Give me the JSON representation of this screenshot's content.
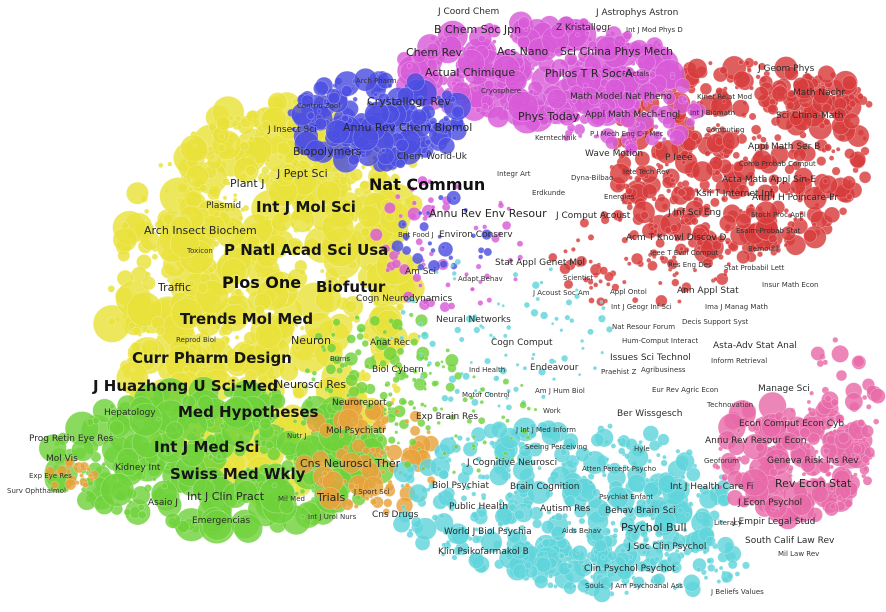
{
  "palette": {
    "yellow": "#e9e23a",
    "green": "#6fd23a",
    "cyan": "#5fd4da",
    "red": "#d83c3c",
    "magenta": "#d85ad8",
    "blue": "#4c4ee0",
    "pink": "#e86aa8",
    "orange": "#e8a23a",
    "background": "#ffffff"
  },
  "labels": [
    {
      "text": "J Coord Chem",
      "tier": 2
    },
    {
      "text": "J Astrophys Astron",
      "tier": 2
    },
    {
      "text": "B Chem Soc Jpn",
      "tier": 3
    },
    {
      "text": "Z Kristallogr",
      "tier": 2
    },
    {
      "text": "Int J Mod Phys D",
      "tier": 1
    },
    {
      "text": "Chem Rev",
      "tier": 3
    },
    {
      "text": "Acs Nano",
      "tier": 3
    },
    {
      "text": "Sci China Phys Mech",
      "tier": 3
    },
    {
      "text": "Actual Chimique",
      "tier": 3
    },
    {
      "text": "Philos T R Soc A",
      "tier": 3
    },
    {
      "text": "Fractals",
      "tier": 1
    },
    {
      "text": "J Geom Phys",
      "tier": 2
    },
    {
      "text": "Arch Pharm",
      "tier": 1
    },
    {
      "text": "Cryosphere",
      "tier": 1
    },
    {
      "text": "Math Nachr",
      "tier": 2
    },
    {
      "text": "Contrib Zool",
      "tier": 1
    },
    {
      "text": "Crystallogr Rev",
      "tier": 3
    },
    {
      "text": "Math Model Nat Pheno",
      "tier": 2
    },
    {
      "text": "Kinet Relat Mod",
      "tier": 1
    },
    {
      "text": "Phys Today",
      "tier": 3
    },
    {
      "text": "Appl Math Mech-Engl",
      "tier": 2
    },
    {
      "text": "Int J Biomath",
      "tier": 1
    },
    {
      "text": "Sci China-Math",
      "tier": 2
    },
    {
      "text": "J Insect Sci",
      "tier": 2
    },
    {
      "text": "Annu Rev Chem Biomol",
      "tier": 3
    },
    {
      "text": "P I Mech Eng C-J Mec",
      "tier": 1
    },
    {
      "text": "Computing",
      "tier": 1
    },
    {
      "text": "Kerntechnik",
      "tier": 1
    },
    {
      "text": "Appl Math Ser B",
      "tier": 2
    },
    {
      "text": "Biopolymers",
      "tier": 3
    },
    {
      "text": "Chem World-Uk",
      "tier": 2
    },
    {
      "text": "Wave Motion",
      "tier": 2
    },
    {
      "text": "P Ieee",
      "tier": 2
    },
    {
      "text": "Comb Probab Comput",
      "tier": 1
    },
    {
      "text": "J Pept Sci",
      "tier": 3
    },
    {
      "text": "Integr Art",
      "tier": 1
    },
    {
      "text": "Dyna-Bilbao",
      "tier": 1
    },
    {
      "text": "Iete Tech Rev",
      "tier": 1
    },
    {
      "text": "Acta Math Appl Sin-E",
      "tier": 2
    },
    {
      "text": "Plant J",
      "tier": 3
    },
    {
      "text": "Nat Commun",
      "tier": 6
    },
    {
      "text": "Erdkunde",
      "tier": 1
    },
    {
      "text": "Energies",
      "tier": 1
    },
    {
      "text": "Ksii T Internet Inf",
      "tier": 2
    },
    {
      "text": "Ann I H Poincare-Pr",
      "tier": 2
    },
    {
      "text": "Plasmid",
      "tier": 2
    },
    {
      "text": "Int J Mol Sci",
      "tier": 5
    },
    {
      "text": "Annu Rev Env Resour",
      "tier": 3
    },
    {
      "text": "J Comput Acoust",
      "tier": 2
    },
    {
      "text": "J Inf Sci Eng",
      "tier": 2
    },
    {
      "text": "Stoch Proc Appl",
      "tier": 1
    },
    {
      "text": "Arch Insect Biochem",
      "tier": 3
    },
    {
      "text": "Brit Food J",
      "tier": 1
    },
    {
      "text": "Environ Conserv",
      "tier": 2
    },
    {
      "text": "Acm T Knowl Discov D",
      "tier": 2
    },
    {
      "text": "Esaim-Probab Stat",
      "tier": 1
    },
    {
      "text": "Toxicon",
      "tier": 1
    },
    {
      "text": "P Natl Acad Sci Usa",
      "tier": 5
    },
    {
      "text": "Ieee T Evol Comput",
      "tier": 1
    },
    {
      "text": "Bernoulli",
      "tier": 1
    },
    {
      "text": "Stat Appl Genet Mol",
      "tier": 2
    },
    {
      "text": "Res Eng Des",
      "tier": 1
    },
    {
      "text": "Stat Probabil Lett",
      "tier": 1
    },
    {
      "text": "Am Sci",
      "tier": 2
    },
    {
      "text": "Adapt Behav",
      "tier": 1
    },
    {
      "text": "Scientist",
      "tier": 1
    },
    {
      "text": "Traffic",
      "tier": 3
    },
    {
      "text": "Plos One",
      "tier": 6
    },
    {
      "text": "Biofutur",
      "tier": 5
    },
    {
      "text": "J Acoust Soc Am",
      "tier": 1
    },
    {
      "text": "Appl Ontol",
      "tier": 1
    },
    {
      "text": "Ann Appl Stat",
      "tier": 2
    },
    {
      "text": "Insur Math Econ",
      "tier": 1
    },
    {
      "text": "Cogn Neurodynamics",
      "tier": 2
    },
    {
      "text": "Int J Geogr Inf Sci",
      "tier": 1
    },
    {
      "text": "Ima J Manag Math",
      "tier": 1
    },
    {
      "text": "Neural Networks",
      "tier": 2
    },
    {
      "text": "Decis Support Syst",
      "tier": 1
    },
    {
      "text": "Trends Mol Med",
      "tier": 5
    },
    {
      "text": "Nat Resour Forum",
      "tier": 1
    },
    {
      "text": "Reprod Biol",
      "tier": 1
    },
    {
      "text": "Neuron",
      "tier": 3
    },
    {
      "text": "Cogn Comput",
      "tier": 2
    },
    {
      "text": "Hum-Comput Interact",
      "tier": 1
    },
    {
      "text": "Asta-Adv Stat Anal",
      "tier": 2
    },
    {
      "text": "Anat Rec",
      "tier": 2
    },
    {
      "text": "Burns",
      "tier": 1
    },
    {
      "text": "Issues Sci Technol",
      "tier": 2
    },
    {
      "text": "Curr Pharm Design",
      "tier": 5
    },
    {
      "text": "Ind Health",
      "tier": 1
    },
    {
      "text": "Endeavour",
      "tier": 2
    },
    {
      "text": "Inform Retrieval",
      "tier": 1
    },
    {
      "text": "Biol Cybern",
      "tier": 2
    },
    {
      "text": "Praehist Z",
      "tier": 1
    },
    {
      "text": "Agribusiness",
      "tier": 1
    },
    {
      "text": "Neurosci Res",
      "tier": 3
    },
    {
      "text": "Am J Hum Biol",
      "tier": 1
    },
    {
      "text": "Manage Sci",
      "tier": 2
    },
    {
      "text": "J Huazhong U Sci-Med",
      "tier": 5
    },
    {
      "text": "Motor Control",
      "tier": 1
    },
    {
      "text": "Eur Rev Agric Econ",
      "tier": 1
    },
    {
      "text": "Neuroreport",
      "tier": 2
    },
    {
      "text": "Technovation",
      "tier": 1
    },
    {
      "text": "Hepatology",
      "tier": 2
    },
    {
      "text": "Med Hypotheses",
      "tier": 5
    },
    {
      "text": "Work",
      "tier": 1
    },
    {
      "text": "Ber Wissgesch",
      "tier": 2
    },
    {
      "text": "Exp Brain Res",
      "tier": 2
    },
    {
      "text": "Econ Comput Econ Cyb",
      "tier": 2
    },
    {
      "text": "Prog Retin Eye Res",
      "tier": 2
    },
    {
      "text": "Int J Med Sci",
      "tier": 5
    },
    {
      "text": "Nutr J",
      "tier": 1
    },
    {
      "text": "Mol Psychiatr",
      "tier": 2
    },
    {
      "text": "J Int J Med Inform",
      "tier": 1
    },
    {
      "text": "Annu Rev Resour Econ",
      "tier": 2
    },
    {
      "text": "Mol Vis",
      "tier": 2
    },
    {
      "text": "Seeing Perceiving",
      "tier": 1
    },
    {
      "text": "Hyle",
      "tier": 1
    },
    {
      "text": "Geoforum",
      "tier": 1
    },
    {
      "text": "Geneva Risk Ins Rev",
      "tier": 2
    },
    {
      "text": "Kidney Int",
      "tier": 2
    },
    {
      "text": "Swiss Med Wkly",
      "tier": 5
    },
    {
      "text": "Cns Neurosci Ther",
      "tier": 3
    },
    {
      "text": "J Cognitive Neurosci",
      "tier": 2
    },
    {
      "text": "Atten Percept Psycho",
      "tier": 1
    },
    {
      "text": "Exp Eye Res",
      "tier": 1
    },
    {
      "text": "Rev Econ Stat",
      "tier": 3
    },
    {
      "text": "Surv Ophthalmol",
      "tier": 1
    },
    {
      "text": "Biol Psychiat",
      "tier": 2
    },
    {
      "text": "Brain Cognition",
      "tier": 2
    },
    {
      "text": "Int J Health Care Fi",
      "tier": 2
    },
    {
      "text": "Int J Clin Pract",
      "tier": 3
    },
    {
      "text": "Mil Med",
      "tier": 1
    },
    {
      "text": "Trials",
      "tier": 3
    },
    {
      "text": "J Sport Sci",
      "tier": 1
    },
    {
      "text": "Psychiat Enfant",
      "tier": 1
    },
    {
      "text": "Asaio J",
      "tier": 2
    },
    {
      "text": "Public Health",
      "tier": 2
    },
    {
      "text": "Autism Res",
      "tier": 2
    },
    {
      "text": "Behav Brain Sci",
      "tier": 2
    },
    {
      "text": "J Econ Psychol",
      "tier": 2
    },
    {
      "text": "Cns Drugs",
      "tier": 2
    },
    {
      "text": "Int J Urol Nurs",
      "tier": 1
    },
    {
      "text": "Emergencias",
      "tier": 2
    },
    {
      "text": "Literacy",
      "tier": 1
    },
    {
      "text": "J Empir Legal Stud",
      "tier": 2
    },
    {
      "text": "World J Biol Psychia",
      "tier": 2
    },
    {
      "text": "Aids Behav",
      "tier": 1
    },
    {
      "text": "Psychol Bull",
      "tier": 3
    },
    {
      "text": "J Soc Clin Psychol",
      "tier": 2
    },
    {
      "text": "South Calif Law Rev",
      "tier": 2
    },
    {
      "text": "Klin Psikofarmakol B",
      "tier": 2
    },
    {
      "text": "Mil Law Rev",
      "tier": 1
    },
    {
      "text": "Clin Psychol Psychot",
      "tier": 2
    },
    {
      "text": "Souls",
      "tier": 1
    },
    {
      "text": "J Am Psychoanal Ass",
      "tier": 1
    },
    {
      "text": "J Beliefs Values",
      "tier": 1
    }
  ]
}
